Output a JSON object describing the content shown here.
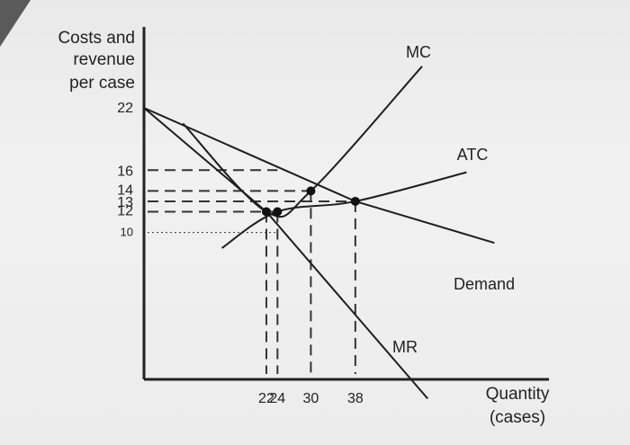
{
  "chart_data": {
    "type": "line",
    "title": "",
    "ylabel": [
      "Costs and",
      "revenue",
      "per case"
    ],
    "xlabel": [
      "Quantity",
      "(cases)"
    ],
    "y_ticks": [
      10,
      12,
      13,
      14,
      16,
      22
    ],
    "x_ticks": [
      22,
      24,
      30,
      38
    ],
    "grid": false,
    "series": [
      {
        "name": "Demand",
        "points": [
          [
            0,
            22
          ],
          [
            38,
            13
          ],
          [
            63,
            9
          ]
        ]
      },
      {
        "name": "MR",
        "points": [
          [
            0,
            22
          ],
          [
            22,
            12
          ],
          [
            51,
            -6
          ]
        ]
      },
      {
        "name": "ATC",
        "points": [
          [
            14,
            8.5
          ],
          [
            24,
            12
          ],
          [
            38,
            13
          ],
          [
            58,
            15.8
          ]
        ]
      },
      {
        "name": "MC",
        "points": [
          [
            7,
            20.5
          ],
          [
            22,
            12
          ],
          [
            30,
            14
          ],
          [
            50,
            26
          ]
        ]
      }
    ],
    "key_points": [
      {
        "x": 22,
        "y": 12
      },
      {
        "x": 24,
        "y": 12
      },
      {
        "x": 30,
        "y": 14
      },
      {
        "x": 38,
        "y": 13
      }
    ],
    "dashed_guides": [
      {
        "y": 16,
        "x_to": 24
      },
      {
        "y": 14,
        "x_to": 30
      },
      {
        "y": 13,
        "x_to": 38
      },
      {
        "y": 12,
        "x_to": 24
      },
      {
        "y": 10,
        "x_to": 24
      }
    ]
  }
}
